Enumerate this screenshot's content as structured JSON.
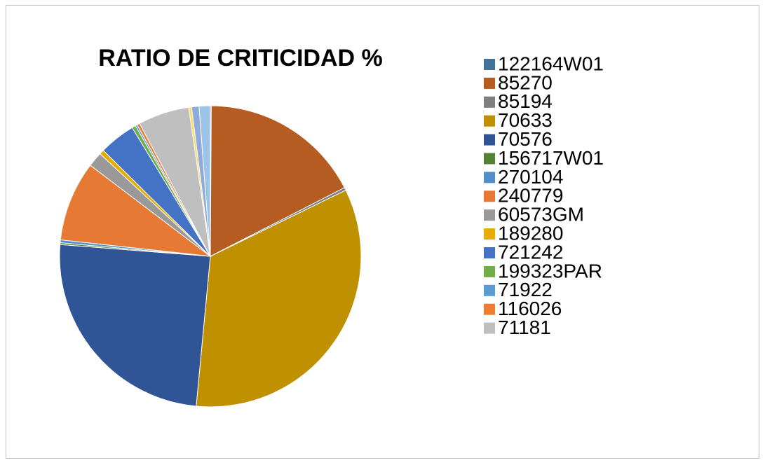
{
  "chart_data": {
    "type": "pie",
    "title": "RATIO DE CRITICIDAD %",
    "categories": [
      "122164W01",
      "85270",
      "85194",
      "70633",
      "70576",
      "156717W01",
      "270104",
      "240779",
      "60573GM",
      "189280",
      "721242",
      "199323PAR",
      "71922",
      "116026",
      "71181",
      null,
      null,
      null
    ],
    "values": [
      0.1,
      17.4,
      0.3,
      33.8,
      24.8,
      0.2,
      0.3,
      8.6,
      1.6,
      0.5,
      3.9,
      0.4,
      0.2,
      0.3,
      5.5,
      0.3,
      0.8,
      1.2
    ],
    "colors": [
      "#41729c",
      "#b45c22",
      "#7f7f7f",
      "#bf9000",
      "#2f5597",
      "#548235",
      "#4f8fca",
      "#e67a35",
      "#999999",
      "#e6ac00",
      "#4472c4",
      "#70ad47",
      "#5b9bd5",
      "#ed7d31",
      "#bfbfbf",
      "#ffd966",
      "#8faadc",
      "#9dc3e6"
    ]
  }
}
